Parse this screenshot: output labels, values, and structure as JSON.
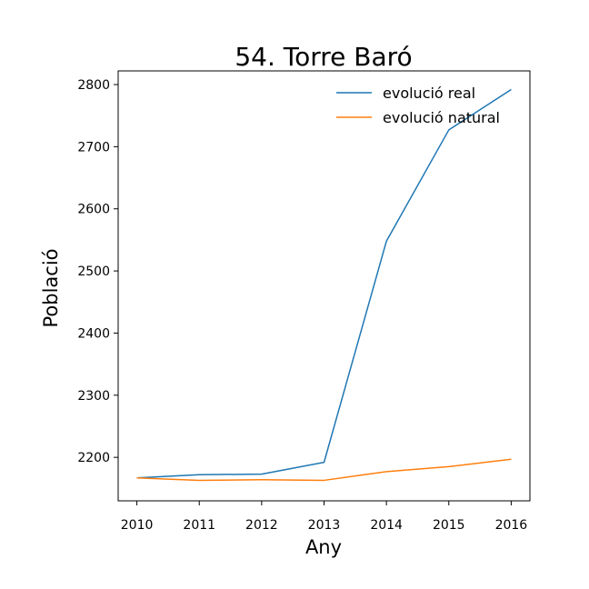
{
  "chart_data": {
    "type": "line",
    "title": "54. Torre Baró",
    "xlabel": "Any",
    "ylabel": "Població",
    "x": [
      2010,
      2011,
      2012,
      2013,
      2014,
      2015,
      2016
    ],
    "xlim": [
      2009.7,
      2016.3
    ],
    "ylim": [
      2130,
      2822
    ],
    "yticks": [
      2200,
      2300,
      2400,
      2500,
      2600,
      2700,
      2800
    ],
    "grid": false,
    "legend_position": "top-right",
    "series": [
      {
        "name": "evolució real",
        "color": "#1f77b4",
        "values": [
          2167,
          2172,
          2173,
          2192,
          2548,
          2727,
          2792
        ]
      },
      {
        "name": "evolució natural",
        "color": "#ff7f0e",
        "values": [
          2167,
          2163,
          2164,
          2163,
          2177,
          2185,
          2197
        ]
      }
    ]
  }
}
